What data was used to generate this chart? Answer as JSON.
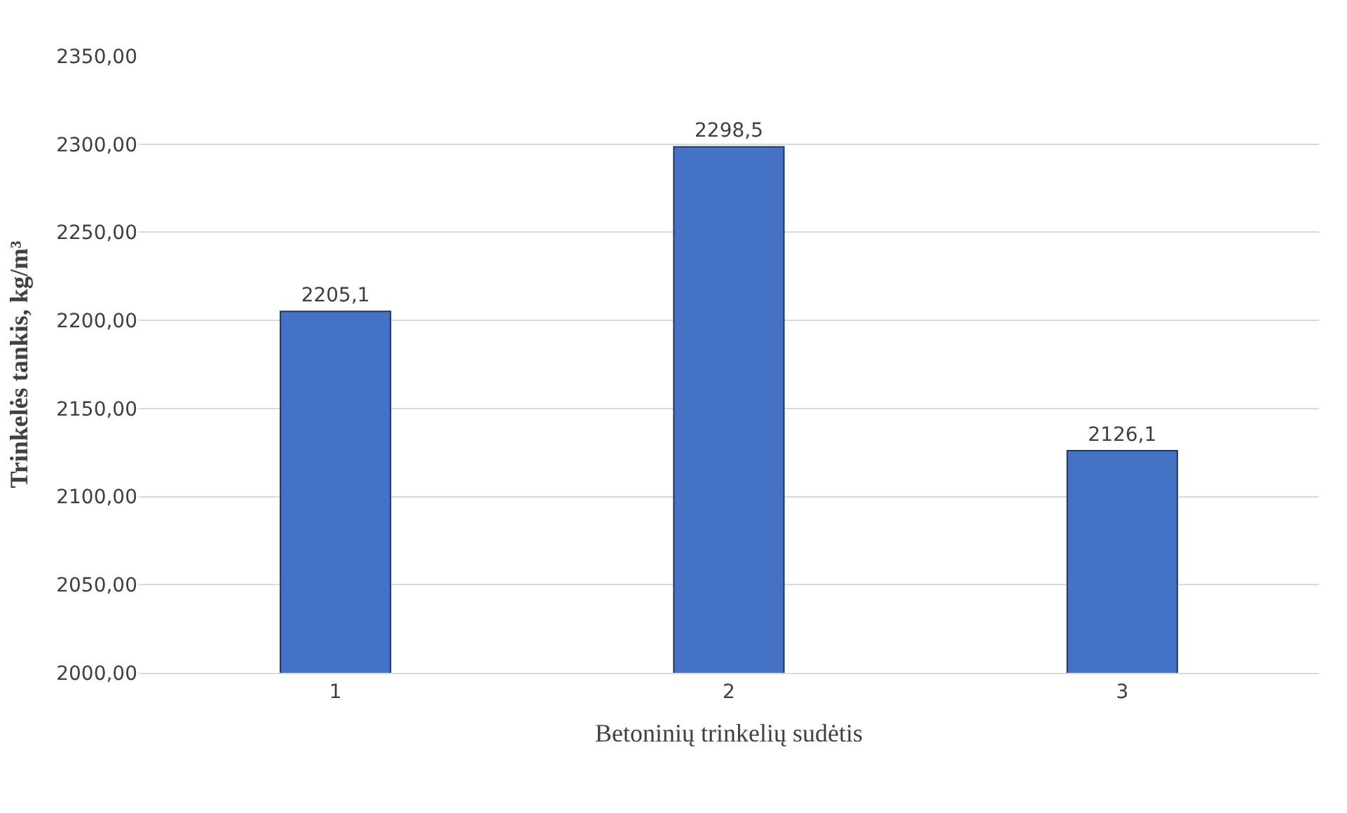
{
  "chart_data": {
    "type": "bar",
    "xlabel": "Betoninių trinkelių sudėtis",
    "ylabel": "Trinkelės tankis, kg/m³",
    "categories": [
      "1",
      "2",
      "3"
    ],
    "values": [
      2205.1,
      2298.5,
      2126.1
    ],
    "value_labels": [
      "2205,1",
      "2298,5",
      "2126,1"
    ],
    "color": "#4472c4",
    "ylim": [
      2000,
      2350
    ],
    "yticks": [
      {
        "value": 2000,
        "label": "2000,00"
      },
      {
        "value": 2050,
        "label": "2050,00"
      },
      {
        "value": 2100,
        "label": "2100,00"
      },
      {
        "value": 2150,
        "label": "2150,00"
      },
      {
        "value": 2200,
        "label": "2200,00"
      },
      {
        "value": 2250,
        "label": "2250,00"
      },
      {
        "value": 2300,
        "label": "2300,00"
      },
      {
        "value": 2350,
        "label": "2350,00"
      }
    ],
    "grid": "y",
    "legend": false
  }
}
